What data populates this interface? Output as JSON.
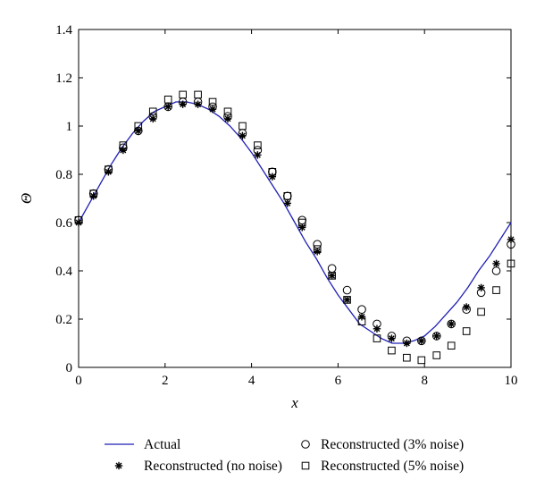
{
  "chart_data": {
    "type": "line",
    "xlabel": "x",
    "ylabel": "Θ",
    "xlim": [
      0,
      10
    ],
    "ylim": [
      0,
      1.4
    ],
    "xticks": [
      0,
      2,
      4,
      6,
      8,
      10
    ],
    "yticks": [
      0,
      0.2,
      0.4,
      0.6,
      0.8,
      1,
      1.2,
      1.4
    ],
    "xtick_labels": [
      "0",
      "2",
      "4",
      "6",
      "8",
      "10"
    ],
    "ytick_labels": [
      "0",
      "0.2",
      "0.4",
      "0.6",
      "0.8",
      "1",
      "1.2",
      "1.4"
    ],
    "grid": false,
    "legend_position": "bottom",
    "series": [
      {
        "name": "Actual",
        "style": "line",
        "color": "#1f1fb4",
        "x": [
          0,
          0.25,
          0.5,
          0.75,
          1,
          1.25,
          1.5,
          1.75,
          2,
          2.25,
          2.5,
          2.75,
          3,
          3.25,
          3.5,
          3.75,
          4,
          4.25,
          4.5,
          4.75,
          5,
          5.25,
          5.5,
          5.75,
          6,
          6.25,
          6.5,
          6.75,
          7,
          7.25,
          7.5,
          7.75,
          8,
          8.25,
          8.5,
          8.75,
          9,
          9.25,
          9.5,
          9.75,
          10
        ],
        "y": [
          0.6,
          0.68,
          0.76,
          0.84,
          0.91,
          0.97,
          1.02,
          1.06,
          1.08,
          1.1,
          1.1,
          1.09,
          1.07,
          1.04,
          1.0,
          0.95,
          0.89,
          0.82,
          0.75,
          0.68,
          0.6,
          0.52,
          0.45,
          0.37,
          0.3,
          0.24,
          0.18,
          0.15,
          0.12,
          0.1,
          0.1,
          0.11,
          0.13,
          0.17,
          0.22,
          0.27,
          0.33,
          0.4,
          0.46,
          0.53,
          0.6
        ]
      },
      {
        "name": "Reconstructed (no noise)",
        "style": "star",
        "color": "#000000",
        "x": [
          0,
          0.345,
          0.69,
          1.03,
          1.38,
          1.72,
          2.07,
          2.41,
          2.76,
          3.1,
          3.45,
          3.79,
          4.14,
          4.48,
          4.83,
          5.17,
          5.52,
          5.86,
          6.21,
          6.55,
          6.9,
          7.24,
          7.59,
          7.93,
          8.28,
          8.62,
          8.97,
          9.31,
          9.66,
          10
        ],
        "y": [
          0.6,
          0.71,
          0.81,
          0.9,
          0.98,
          1.03,
          1.08,
          1.09,
          1.09,
          1.07,
          1.03,
          0.96,
          0.88,
          0.79,
          0.68,
          0.58,
          0.48,
          0.38,
          0.28,
          0.21,
          0.16,
          0.12,
          0.1,
          0.11,
          0.13,
          0.18,
          0.25,
          0.33,
          0.43,
          0.53
        ]
      },
      {
        "name": "Reconstructed (3% noise)",
        "style": "circle",
        "color": "#000000",
        "x": [
          0,
          0.345,
          0.69,
          1.03,
          1.38,
          1.72,
          2.07,
          2.41,
          2.76,
          3.1,
          3.45,
          3.79,
          4.14,
          4.48,
          4.83,
          5.17,
          5.52,
          5.86,
          6.21,
          6.55,
          6.9,
          7.24,
          7.59,
          7.93,
          8.28,
          8.62,
          8.97,
          9.31,
          9.66,
          10
        ],
        "y": [
          0.61,
          0.72,
          0.82,
          0.91,
          0.98,
          1.04,
          1.08,
          1.1,
          1.1,
          1.08,
          1.04,
          0.97,
          0.9,
          0.81,
          0.71,
          0.61,
          0.51,
          0.41,
          0.32,
          0.24,
          0.18,
          0.13,
          0.11,
          0.11,
          0.13,
          0.18,
          0.24,
          0.31,
          0.4,
          0.51
        ]
      },
      {
        "name": "Reconstructed (5% noise)",
        "style": "square",
        "color": "#000000",
        "x": [
          0,
          0.345,
          0.69,
          1.03,
          1.38,
          1.72,
          2.07,
          2.41,
          2.76,
          3.1,
          3.45,
          3.79,
          4.14,
          4.48,
          4.83,
          5.17,
          5.52,
          5.86,
          6.21,
          6.55,
          6.9,
          7.24,
          7.59,
          7.93,
          8.28,
          8.62,
          8.97,
          9.31,
          9.66,
          10
        ],
        "y": [
          0.61,
          0.72,
          0.82,
          0.92,
          1.0,
          1.06,
          1.11,
          1.13,
          1.13,
          1.1,
          1.06,
          1.0,
          0.92,
          0.81,
          0.71,
          0.6,
          0.49,
          0.38,
          0.28,
          0.19,
          0.12,
          0.07,
          0.04,
          0.03,
          0.05,
          0.09,
          0.15,
          0.23,
          0.32,
          0.43
        ]
      }
    ]
  }
}
